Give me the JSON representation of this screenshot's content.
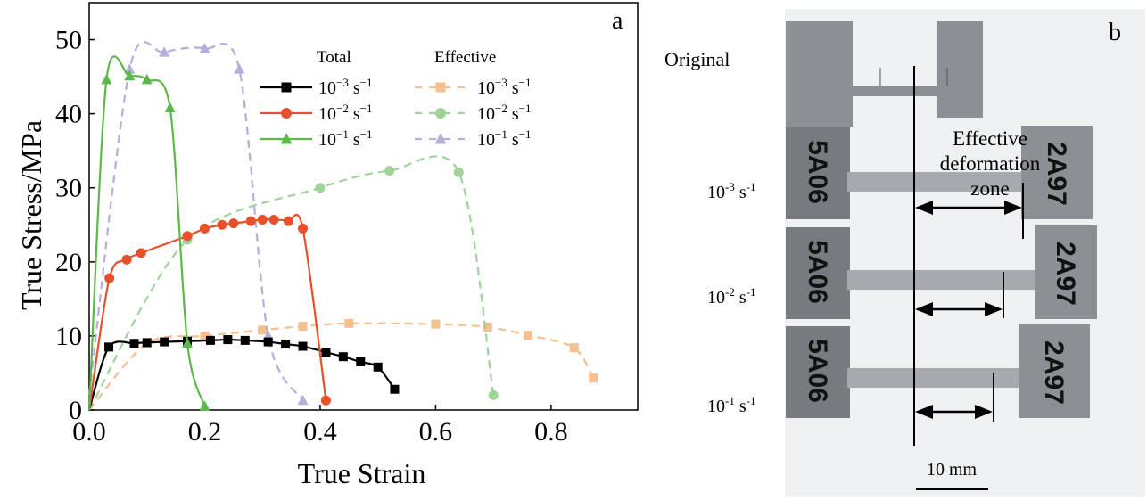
{
  "chart_data": {
    "type": "line",
    "panel_label": "a",
    "xlabel": "True Strain",
    "ylabel": "True Stress/MPa",
    "xlim": [
      0,
      0.95
    ],
    "ylim": [
      0,
      55
    ],
    "xticks": [
      "0.0",
      "0.2",
      "0.4",
      "0.6",
      "0.8"
    ],
    "xtick_values": [
      0,
      0.2,
      0.4,
      0.6,
      0.8
    ],
    "yticks": [
      "0",
      "10",
      "20",
      "30",
      "40",
      "50"
    ],
    "ytick_values": [
      0,
      10,
      20,
      30,
      40,
      50
    ],
    "legend": {
      "placement": "top-center",
      "group_titles": [
        "Total",
        "Effective"
      ]
    },
    "series": [
      {
        "name": "Total 10^-3 s^-1",
        "label_base": "10",
        "label_exp": "−3",
        "label_unit": "s",
        "label_unit_exp": "−1",
        "group": "Total",
        "color": "#000000",
        "marker": "square",
        "dashed": false,
        "start": [
          0,
          0
        ],
        "points": [
          [
            0.034,
            8.5
          ],
          [
            0.078,
            9.0
          ],
          [
            0.1,
            9.1
          ],
          [
            0.13,
            9.2
          ],
          [
            0.17,
            9.3
          ],
          [
            0.21,
            9.4
          ],
          [
            0.24,
            9.5
          ],
          [
            0.27,
            9.4
          ],
          [
            0.31,
            9.2
          ],
          [
            0.34,
            8.9
          ],
          [
            0.37,
            8.6
          ],
          [
            0.41,
            7.8
          ],
          [
            0.44,
            7.2
          ],
          [
            0.47,
            6.5
          ],
          [
            0.5,
            5.8
          ],
          [
            0.529,
            2.8
          ]
        ]
      },
      {
        "name": "Total 10^-2 s^-1",
        "label_base": "10",
        "label_exp": "−2",
        "label_unit": "s",
        "label_unit_exp": "−1",
        "group": "Total",
        "color": "#e8502a",
        "marker": "circle",
        "dashed": false,
        "start": [
          0,
          0
        ],
        "points": [
          [
            0.035,
            17.8
          ],
          [
            0.065,
            20.3
          ],
          [
            0.09,
            21.2
          ],
          [
            0.17,
            23.5
          ],
          [
            0.2,
            24.5
          ],
          [
            0.23,
            25.0
          ],
          [
            0.25,
            25.2
          ],
          [
            0.28,
            25.5
          ],
          [
            0.3,
            25.7
          ],
          [
            0.32,
            25.7
          ],
          [
            0.345,
            25.5
          ],
          [
            0.37,
            24.5
          ],
          [
            0.41,
            1.3
          ]
        ]
      },
      {
        "name": "Total 10^-1 s^-1",
        "label_base": "10",
        "label_exp": "−1",
        "label_unit": "s",
        "label_unit_exp": "−1",
        "group": "Total",
        "color": "#5cb84a",
        "marker": "triangle",
        "dashed": false,
        "start": [
          0,
          0
        ],
        "points": [
          [
            0.03,
            44.6
          ],
          [
            0.07,
            45.1
          ],
          [
            0.1,
            44.6
          ],
          [
            0.14,
            40.8
          ],
          [
            0.17,
            9.0
          ],
          [
            0.2,
            0.5
          ]
        ]
      },
      {
        "name": "Effective 10^-3 s^-1",
        "label_base": "10",
        "label_exp": "−3",
        "label_unit": "s",
        "label_unit_exp": "−1",
        "group": "Effective",
        "color": "#f5c08f",
        "marker": "square",
        "dashed": true,
        "start": [
          0,
          0
        ],
        "points": [
          [
            0.1,
            9.0
          ],
          [
            0.2,
            10.0
          ],
          [
            0.3,
            10.8
          ],
          [
            0.37,
            11.3
          ],
          [
            0.45,
            11.7
          ],
          [
            0.6,
            11.6
          ],
          [
            0.69,
            11.2
          ],
          [
            0.76,
            10.1
          ],
          [
            0.84,
            8.4
          ],
          [
            0.873,
            4.3
          ]
        ]
      },
      {
        "name": "Effective 10^-2 s^-1",
        "label_base": "10",
        "label_exp": "−2",
        "label_unit": "s",
        "label_unit_exp": "−1",
        "group": "Effective",
        "color": "#9fd39a",
        "marker": "circle",
        "dashed": true,
        "start": [
          0,
          0
        ],
        "points": [
          [
            0.17,
            23.0
          ],
          [
            0.4,
            30.0
          ],
          [
            0.52,
            32.3
          ],
          [
            0.64,
            32.1
          ],
          [
            0.7,
            2.0
          ]
        ]
      },
      {
        "name": "Effective 10^-1 s^-1",
        "label_base": "10",
        "label_exp": "−1",
        "label_unit": "s",
        "label_unit_exp": "−1",
        "group": "Effective",
        "color": "#b4aedb",
        "marker": "triangle",
        "dashed": true,
        "start": [
          0,
          2
        ],
        "points": [
          [
            0.07,
            46.0
          ],
          [
            0.13,
            48.3
          ],
          [
            0.2,
            48.8
          ],
          [
            0.26,
            46.0
          ],
          [
            0.31,
            10.0
          ],
          [
            0.37,
            1.3
          ]
        ]
      }
    ]
  },
  "photo": {
    "panel_label": "b",
    "row_labels": [
      {
        "text": "Original"
      },
      {
        "base": "10",
        "exp": "-3",
        "unit": "s",
        "unit_exp": "-1"
      },
      {
        "base": "10",
        "exp": "-2",
        "unit": "s",
        "unit_exp": "-1"
      },
      {
        "base": "10",
        "exp": "-1",
        "unit": "s",
        "unit_exp": "-1"
      }
    ],
    "annotation": [
      "Effective",
      "deformation",
      "zone"
    ],
    "scale_bar": "10 mm",
    "specimen_marks_left": "5A06",
    "specimen_marks_right": "2A97"
  }
}
